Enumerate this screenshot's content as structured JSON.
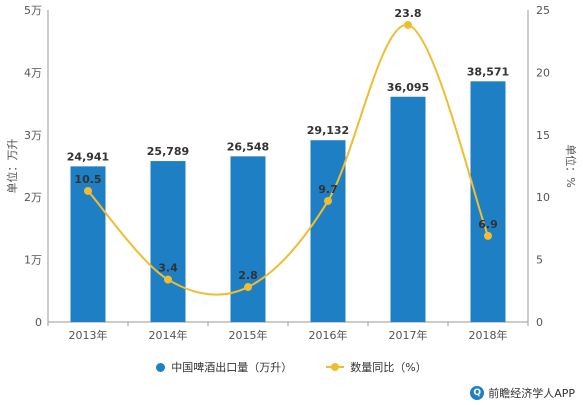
{
  "chart_data": {
    "type": "bar",
    "categories": [
      "2013年",
      "2014年",
      "2015年",
      "2016年",
      "2017年",
      "2018年"
    ],
    "series": [
      {
        "name": "中国啤酒出口量（万升）",
        "type": "bar",
        "axis": "left",
        "values": [
          24941,
          25789,
          26548,
          29132,
          36095,
          38571
        ],
        "labels": [
          "24,941",
          "25,789",
          "26,548",
          "29,132",
          "36,095",
          "38,571"
        ]
      },
      {
        "name": "数量同比（%）",
        "type": "line",
        "axis": "right",
        "values": [
          10.5,
          3.4,
          2.8,
          9.7,
          23.8,
          6.9
        ],
        "labels": [
          "10.5",
          "3.4",
          "2.8",
          "9.7",
          "23.8",
          "6.9"
        ]
      }
    ],
    "ylabel_left": "单位：万升",
    "ylabel_right": "单位：%",
    "ylim_left": [
      0,
      50000
    ],
    "ylim_right": [
      0,
      25
    ],
    "yticks_left": [
      "0",
      "1万",
      "2万",
      "3万",
      "4万",
      "5万"
    ],
    "yticks_right": [
      "0",
      "5",
      "10",
      "15",
      "20",
      "25"
    ],
    "grid": false,
    "legend_position": "bottom"
  },
  "colors": {
    "bar": "#1f7fc4",
    "line": "#f0bd32"
  },
  "legend": {
    "bar_label": "中国啤酒出口量（万升）",
    "line_label": "数量同比（%）"
  },
  "brand": {
    "text": "前瞻经济学人APP",
    "icon": "brand-logo-icon"
  }
}
